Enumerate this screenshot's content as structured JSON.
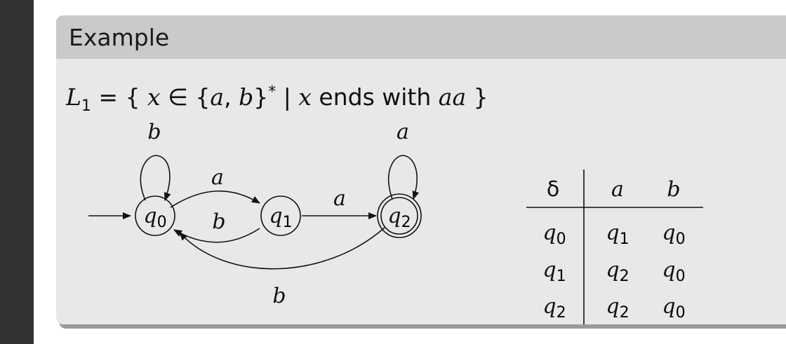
{
  "slide": {
    "block_title": "Example"
  },
  "formula": {
    "lhs": "L",
    "lhs_sub": "1",
    "equals": " = { ",
    "var": "x",
    "in": " ∈ {",
    "sym_a": "a",
    "comma": ", ",
    "sym_b": "b",
    "star_close": "}",
    "star": "*",
    "bar": " | ",
    "var2": "x",
    "ends_with": " ends with ",
    "word": "aa",
    "close": " }"
  },
  "automaton": {
    "states": [
      {
        "name": "q",
        "sub": "0",
        "start": true,
        "accept": false
      },
      {
        "name": "q",
        "sub": "1",
        "start": false,
        "accept": false
      },
      {
        "name": "q",
        "sub": "2",
        "start": false,
        "accept": true
      }
    ],
    "edges": [
      {
        "from": "q0",
        "to": "q0",
        "label": "b"
      },
      {
        "from": "q0",
        "to": "q1",
        "label": "a"
      },
      {
        "from": "q1",
        "to": "q0",
        "label": "b"
      },
      {
        "from": "q1",
        "to": "q2",
        "label": "a"
      },
      {
        "from": "q2",
        "to": "q2",
        "label": "a"
      },
      {
        "from": "q2",
        "to": "q0",
        "label": "b"
      }
    ]
  },
  "transition_table": {
    "header": [
      "δ",
      "a",
      "b"
    ],
    "rows": [
      {
        "state": "q",
        "state_sub": "0",
        "on_a": "q",
        "on_a_sub": "1",
        "on_b": "q",
        "on_b_sub": "0"
      },
      {
        "state": "q",
        "state_sub": "1",
        "on_a": "q",
        "on_a_sub": "2",
        "on_b": "q",
        "on_b_sub": "0"
      },
      {
        "state": "q",
        "state_sub": "2",
        "on_a": "q",
        "on_a_sub": "2",
        "on_b": "q",
        "on_b_sub": "0"
      }
    ]
  }
}
